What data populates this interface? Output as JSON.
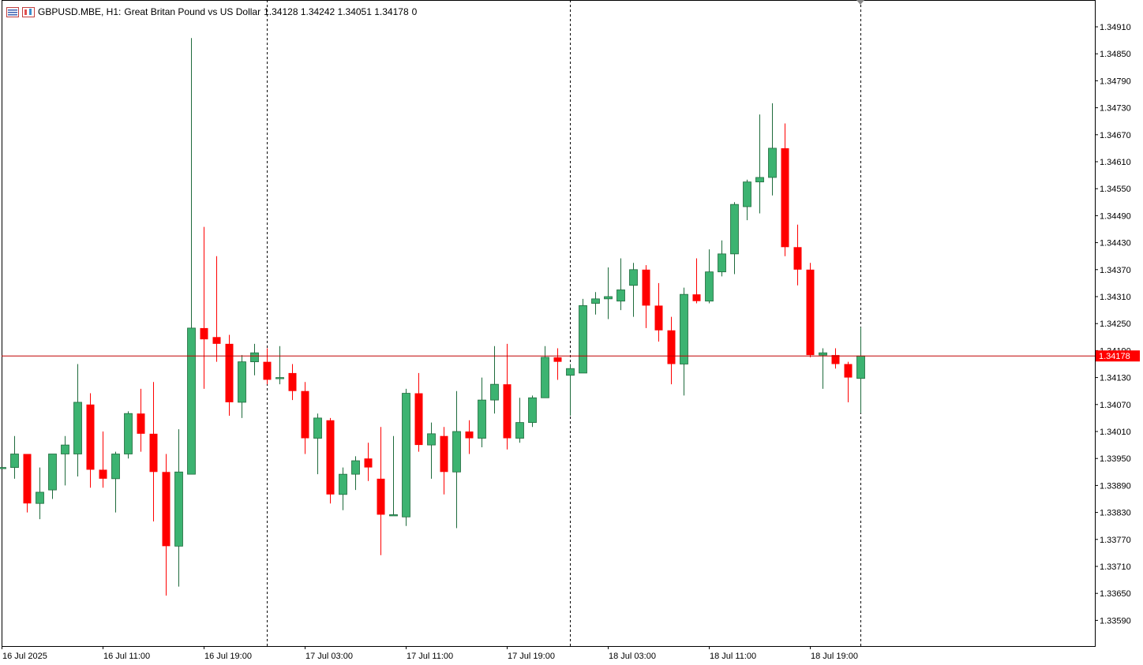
{
  "header": {
    "symbol": "GBPUSD.MBE, H1:",
    "description": "Great Britan Pound vs US Dollar",
    "ohlc": "1.34128 1.34242 1.34051 1.34178",
    "extra": "0"
  },
  "colors": {
    "bull": "#3cb371",
    "bear": "#ff0000",
    "bull_border": "#1e6b3c",
    "grid_separator": "#000000",
    "last_price_line": "#c00000",
    "last_price_bg": "#ff0000"
  },
  "chart_data": {
    "type": "candlestick",
    "symbol": "GBPUSD.MBE",
    "timeframe": "H1",
    "y_ticks": [
      "1.34910",
      "1.34850",
      "1.34790",
      "1.34730",
      "1.34670",
      "1.34610",
      "1.34550",
      "1.34490",
      "1.34430",
      "1.34370",
      "1.34310",
      "1.34250",
      "1.34190",
      "1.34130",
      "1.34070",
      "1.34010",
      "1.33950",
      "1.33890",
      "1.33830",
      "1.33770",
      "1.33710",
      "1.33650",
      "1.33590"
    ],
    "x_ticks": [
      "16 Jul 2025",
      "16 Jul 11:00",
      "16 Jul 19:00",
      "17 Jul 03:00",
      "17 Jul 11:00",
      "17 Jul 19:00",
      "18 Jul 03:00",
      "18 Jul 11:00",
      "18 Jul 19:00"
    ],
    "last_price": "1.34178",
    "ylim": [
      1.33545,
      1.3497
    ],
    "day_separators": [
      "17 Jul 2025 00:00",
      "18 Jul 2025 00:00",
      "19 Jul 2025 00:00"
    ],
    "candles": [
      {
        "o": 1.3393,
        "h": 1.3393,
        "l": 1.3393,
        "c": 1.3393
      },
      {
        "o": 1.3393,
        "h": 1.34,
        "l": 1.33905,
        "c": 1.3396
      },
      {
        "o": 1.3396,
        "h": 1.3396,
        "l": 1.3383,
        "c": 1.3385
      },
      {
        "o": 1.3385,
        "h": 1.3393,
        "l": 1.33815,
        "c": 1.33875
      },
      {
        "o": 1.3388,
        "h": 1.3396,
        "l": 1.3386,
        "c": 1.3396
      },
      {
        "o": 1.3396,
        "h": 1.34,
        "l": 1.3389,
        "c": 1.3398
      },
      {
        "o": 1.3396,
        "h": 1.3416,
        "l": 1.3391,
        "c": 1.34075
      },
      {
        "o": 1.3407,
        "h": 1.34095,
        "l": 1.33885,
        "c": 1.33925
      },
      {
        "o": 1.33925,
        "h": 1.3401,
        "l": 1.33885,
        "c": 1.33905
      },
      {
        "o": 1.33905,
        "h": 1.33965,
        "l": 1.3383,
        "c": 1.3396
      },
      {
        "o": 1.3396,
        "h": 1.34055,
        "l": 1.3395,
        "c": 1.3405
      },
      {
        "o": 1.3405,
        "h": 1.34105,
        "l": 1.33965,
        "c": 1.34005
      },
      {
        "o": 1.34005,
        "h": 1.3412,
        "l": 1.3381,
        "c": 1.3392
      },
      {
        "o": 1.3392,
        "h": 1.3396,
        "l": 1.33645,
        "c": 1.33755
      },
      {
        "o": 1.33755,
        "h": 1.34015,
        "l": 1.33665,
        "c": 1.3392
      },
      {
        "o": 1.33915,
        "h": 1.34885,
        "l": 1.33915,
        "c": 1.3424
      },
      {
        "o": 1.3424,
        "h": 1.34465,
        "l": 1.34105,
        "c": 1.34215
      },
      {
        "o": 1.3422,
        "h": 1.344,
        "l": 1.34165,
        "c": 1.34205
      },
      {
        "o": 1.34205,
        "h": 1.34225,
        "l": 1.34045,
        "c": 1.34075
      },
      {
        "o": 1.34075,
        "h": 1.3418,
        "l": 1.3404,
        "c": 1.34165
      },
      {
        "o": 1.34165,
        "h": 1.34205,
        "l": 1.34135,
        "c": 1.34185
      },
      {
        "o": 1.34165,
        "h": 1.34195,
        "l": 1.34115,
        "c": 1.34125
      },
      {
        "o": 1.3413,
        "h": 1.342,
        "l": 1.34115,
        "c": 1.3413
      },
      {
        "o": 1.3414,
        "h": 1.3416,
        "l": 1.3408,
        "c": 1.341
      },
      {
        "o": 1.341,
        "h": 1.3412,
        "l": 1.3396,
        "c": 1.33995
      },
      {
        "o": 1.33995,
        "h": 1.3405,
        "l": 1.33915,
        "c": 1.3404
      },
      {
        "o": 1.34035,
        "h": 1.3404,
        "l": 1.3385,
        "c": 1.3387
      },
      {
        "o": 1.3387,
        "h": 1.3393,
        "l": 1.33835,
        "c": 1.33915
      },
      {
        "o": 1.33915,
        "h": 1.33955,
        "l": 1.3388,
        "c": 1.33945
      },
      {
        "o": 1.3395,
        "h": 1.33985,
        "l": 1.339,
        "c": 1.3393
      },
      {
        "o": 1.33905,
        "h": 1.3402,
        "l": 1.33735,
        "c": 1.33825
      },
      {
        "o": 1.33825,
        "h": 1.34,
        "l": 1.33825,
        "c": 1.33825
      },
      {
        "o": 1.3382,
        "h": 1.34105,
        "l": 1.338,
        "c": 1.34095
      },
      {
        "o": 1.34095,
        "h": 1.3414,
        "l": 1.33965,
        "c": 1.3398
      },
      {
        "o": 1.3398,
        "h": 1.3403,
        "l": 1.33905,
        "c": 1.34005
      },
      {
        "o": 1.34,
        "h": 1.3402,
        "l": 1.3387,
        "c": 1.3392
      },
      {
        "o": 1.3392,
        "h": 1.341,
        "l": 1.33795,
        "c": 1.3401
      },
      {
        "o": 1.3401,
        "h": 1.34035,
        "l": 1.3396,
        "c": 1.33995
      },
      {
        "o": 1.33995,
        "h": 1.3413,
        "l": 1.33975,
        "c": 1.3408
      },
      {
        "o": 1.3408,
        "h": 1.342,
        "l": 1.3405,
        "c": 1.34115
      },
      {
        "o": 1.34115,
        "h": 1.34205,
        "l": 1.3397,
        "c": 1.33995
      },
      {
        "o": 1.33995,
        "h": 1.34085,
        "l": 1.33985,
        "c": 1.3403
      },
      {
        "o": 1.3403,
        "h": 1.3409,
        "l": 1.3402,
        "c": 1.34085
      },
      {
        "o": 1.34085,
        "h": 1.342,
        "l": 1.34085,
        "c": 1.34175
      },
      {
        "o": 1.34175,
        "h": 1.34195,
        "l": 1.34125,
        "c": 1.34165
      },
      {
        "o": 1.34135,
        "h": 1.3416,
        "l": 1.34045,
        "c": 1.3415
      },
      {
        "o": 1.3414,
        "h": 1.34305,
        "l": 1.3414,
        "c": 1.3429
      },
      {
        "o": 1.34295,
        "h": 1.3432,
        "l": 1.3427,
        "c": 1.34305
      },
      {
        "o": 1.34305,
        "h": 1.34375,
        "l": 1.3426,
        "c": 1.3431
      },
      {
        "o": 1.343,
        "h": 1.34395,
        "l": 1.3428,
        "c": 1.34325
      },
      {
        "o": 1.34335,
        "h": 1.34385,
        "l": 1.34265,
        "c": 1.3437
      },
      {
        "o": 1.3437,
        "h": 1.3438,
        "l": 1.3424,
        "c": 1.3429
      },
      {
        "o": 1.3429,
        "h": 1.3434,
        "l": 1.3421,
        "c": 1.34235
      },
      {
        "o": 1.34235,
        "h": 1.34265,
        "l": 1.34115,
        "c": 1.3416
      },
      {
        "o": 1.3416,
        "h": 1.3433,
        "l": 1.3409,
        "c": 1.34315
      },
      {
        "o": 1.34315,
        "h": 1.34395,
        "l": 1.34295,
        "c": 1.343
      },
      {
        "o": 1.343,
        "h": 1.34415,
        "l": 1.34295,
        "c": 1.34365
      },
      {
        "o": 1.34365,
        "h": 1.34435,
        "l": 1.34355,
        "c": 1.34405
      },
      {
        "o": 1.34405,
        "h": 1.3452,
        "l": 1.3436,
        "c": 1.34515
      },
      {
        "o": 1.3451,
        "h": 1.3457,
        "l": 1.3448,
        "c": 1.34565
      },
      {
        "o": 1.34565,
        "h": 1.34715,
        "l": 1.34495,
        "c": 1.34575
      },
      {
        "o": 1.34575,
        "h": 1.3474,
        "l": 1.34535,
        "c": 1.3464
      },
      {
        "o": 1.3464,
        "h": 1.34695,
        "l": 1.344,
        "c": 1.3442
      },
      {
        "o": 1.3442,
        "h": 1.3447,
        "l": 1.34335,
        "c": 1.3437
      },
      {
        "o": 1.3437,
        "h": 1.34385,
        "l": 1.34175,
        "c": 1.3418
      },
      {
        "o": 1.3418,
        "h": 1.34195,
        "l": 1.34105,
        "c": 1.34185
      },
      {
        "o": 1.3418,
        "h": 1.34195,
        "l": 1.3415,
        "c": 1.3416
      },
      {
        "o": 1.3416,
        "h": 1.34165,
        "l": 1.34075,
        "c": 1.3413
      },
      {
        "o": 1.34128,
        "h": 1.34242,
        "l": 1.34051,
        "c": 1.34178
      }
    ]
  }
}
